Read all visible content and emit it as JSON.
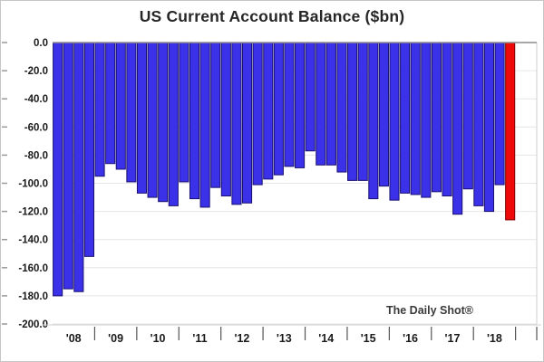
{
  "watermark": "The Daily Shot®",
  "chart_data": {
    "type": "bar",
    "title": "US Current Account Balance ($bn)",
    "xlabel": "",
    "ylabel": "",
    "ylim": [
      -200,
      0
    ],
    "grid": true,
    "legend": "none",
    "ytick_labels": [
      "0.0",
      "-20.0",
      "-40.0",
      "-60.0",
      "-80.0",
      "-100.0",
      "-120.0",
      "-140.0",
      "-160.0",
      "-180.0",
      "-200.0"
    ],
    "x_year_labels": [
      "'08",
      "'09",
      "'10",
      "'11",
      "'12",
      "'13",
      "'14",
      "'15",
      "'16",
      "'17",
      "'18"
    ],
    "quarters_per_year": 4,
    "series": [
      {
        "name": "US Current Account Balance ($bn), quarterly",
        "values": [
          -180,
          -175,
          -177,
          -152,
          -95,
          -86,
          -90,
          -99,
          -107,
          -110,
          -113,
          -116,
          -99,
          -111,
          -117,
          -103,
          -109,
          -115,
          -114,
          -101,
          -97,
          -94,
          -88,
          -89,
          -77,
          -87,
          -87,
          -92,
          -98,
          -98,
          -111,
          -102,
          -112,
          -107,
          -108,
          -110,
          -106,
          -109,
          -122,
          -104,
          -116,
          -120,
          -101,
          -126
        ]
      }
    ],
    "highlight_last_bar": true,
    "bar_color": "#3a31e8",
    "bar_border_color": "#1a1070",
    "highlight_color": "#ee0a0a",
    "highlight_border_color": "#7d0000",
    "gridline_color": "#e6e6e6",
    "zero_line_color": "#8c8c8c",
    "axis_line_color": "#cfcfcf",
    "tick_color": "#555555"
  }
}
